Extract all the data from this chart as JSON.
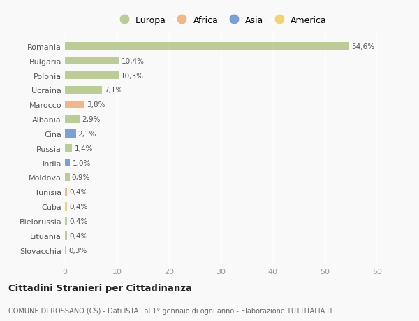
{
  "categories": [
    "Romania",
    "Bulgaria",
    "Polonia",
    "Ucraina",
    "Marocco",
    "Albania",
    "Cina",
    "Russia",
    "India",
    "Moldova",
    "Tunisia",
    "Cuba",
    "Bielorussia",
    "Lituania",
    "Slovacchia"
  ],
  "values": [
    54.6,
    10.4,
    10.3,
    7.1,
    3.8,
    2.9,
    2.1,
    1.4,
    1.0,
    0.9,
    0.4,
    0.4,
    0.4,
    0.4,
    0.3
  ],
  "labels": [
    "54,6%",
    "10,4%",
    "10,3%",
    "7,1%",
    "3,8%",
    "2,9%",
    "2,1%",
    "1,4%",
    "1,0%",
    "0,9%",
    "0,4%",
    "0,4%",
    "0,4%",
    "0,4%",
    "0,3%"
  ],
  "continents": [
    "Europa",
    "Europa",
    "Europa",
    "Europa",
    "Africa",
    "Europa",
    "Asia",
    "Europa",
    "Asia",
    "Europa",
    "Africa",
    "America",
    "Europa",
    "Europa",
    "Europa"
  ],
  "colors": {
    "Europa": "#b5c98a",
    "Africa": "#f2b07a",
    "Asia": "#6b96d4",
    "America": "#f0d060"
  },
  "legend_order": [
    "Europa",
    "Africa",
    "Asia",
    "America"
  ],
  "title": "Cittadini Stranieri per Cittadinanza",
  "subtitle": "COMUNE DI ROSSANO (CS) - Dati ISTAT al 1° gennaio di ogni anno - Elaborazione TUTTITALIA.IT",
  "xlim": [
    0,
    60
  ],
  "xticks": [
    0,
    10,
    20,
    30,
    40,
    50,
    60
  ],
  "bg_color": "#f9f9f9",
  "grid_color": "#e8e8e8",
  "bar_height": 0.55,
  "bar_alpha": 0.9
}
